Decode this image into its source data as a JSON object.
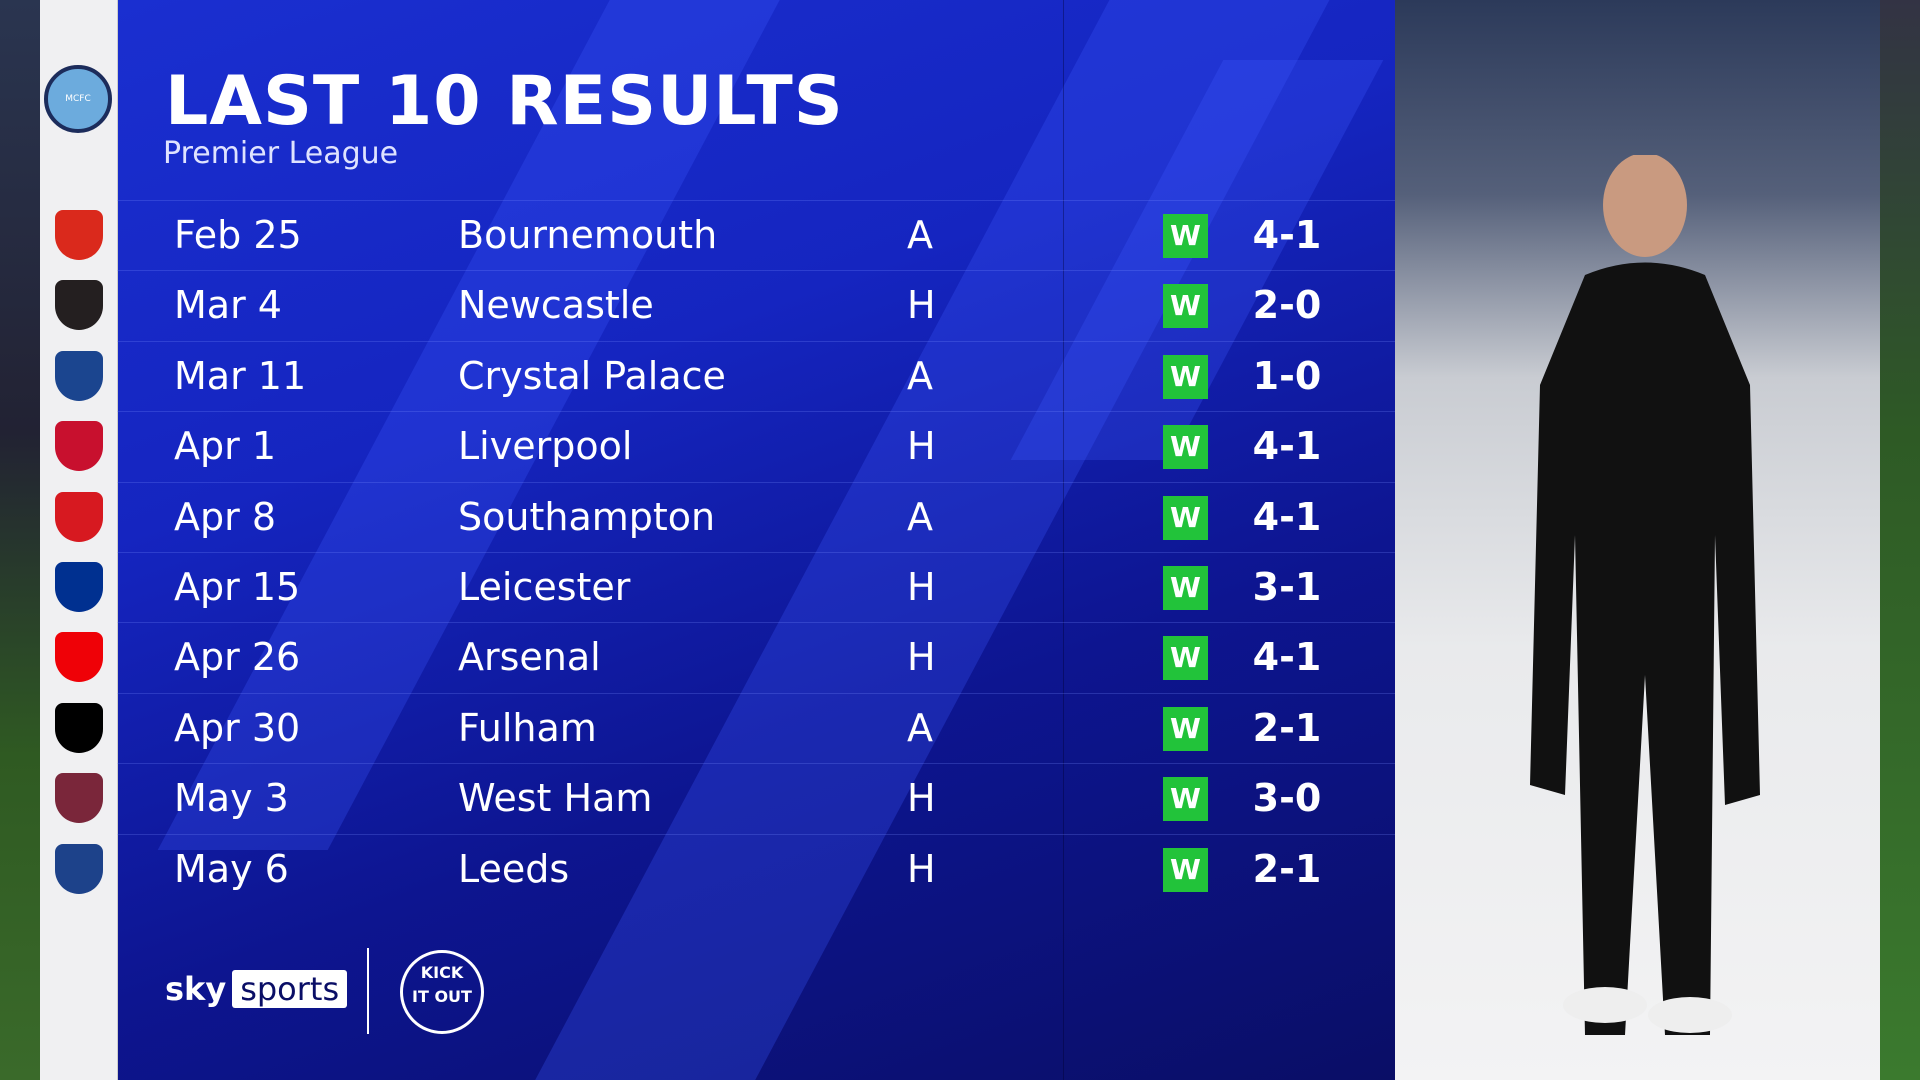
{
  "header": {
    "title": "LAST 10 RESULTS",
    "subtitle": "Premier League"
  },
  "team_badge": "manchester-city-crest",
  "results": [
    {
      "date": "Feb 25",
      "opponent": "Bournemouth",
      "venue": "A",
      "result": "W",
      "score": "4-1",
      "crest_color": "#da291c"
    },
    {
      "date": "Mar 4",
      "opponent": "Newcastle",
      "venue": "H",
      "result": "W",
      "score": "2-0",
      "crest_color": "#241f20"
    },
    {
      "date": "Mar 11",
      "opponent": "Crystal Palace",
      "venue": "A",
      "result": "W",
      "score": "1-0",
      "crest_color": "#1b458f"
    },
    {
      "date": "Apr 1",
      "opponent": "Liverpool",
      "venue": "H",
      "result": "W",
      "score": "4-1",
      "crest_color": "#c8102e"
    },
    {
      "date": "Apr 8",
      "opponent": "Southampton",
      "venue": "A",
      "result": "W",
      "score": "4-1",
      "crest_color": "#d71920"
    },
    {
      "date": "Apr 15",
      "opponent": "Leicester",
      "venue": "H",
      "result": "W",
      "score": "3-1",
      "crest_color": "#003090"
    },
    {
      "date": "Apr 26",
      "opponent": "Arsenal",
      "venue": "H",
      "result": "W",
      "score": "4-1",
      "crest_color": "#ef0107"
    },
    {
      "date": "Apr 30",
      "opponent": "Fulham",
      "venue": "A",
      "result": "W",
      "score": "2-1",
      "crest_color": "#000000"
    },
    {
      "date": "May 3",
      "opponent": "West Ham",
      "venue": "H",
      "result": "W",
      "score": "3-0",
      "crest_color": "#7a263a"
    },
    {
      "date": "May 6",
      "opponent": "Leeds",
      "venue": "H",
      "result": "W",
      "score": "2-1",
      "crest_color": "#1d428a"
    }
  ],
  "colors": {
    "win": "#22c33a",
    "panel": "#1525c0"
  },
  "footer": {
    "sky": "sky",
    "sports": "sports",
    "kick_it_out": "KICK IT OUT"
  }
}
